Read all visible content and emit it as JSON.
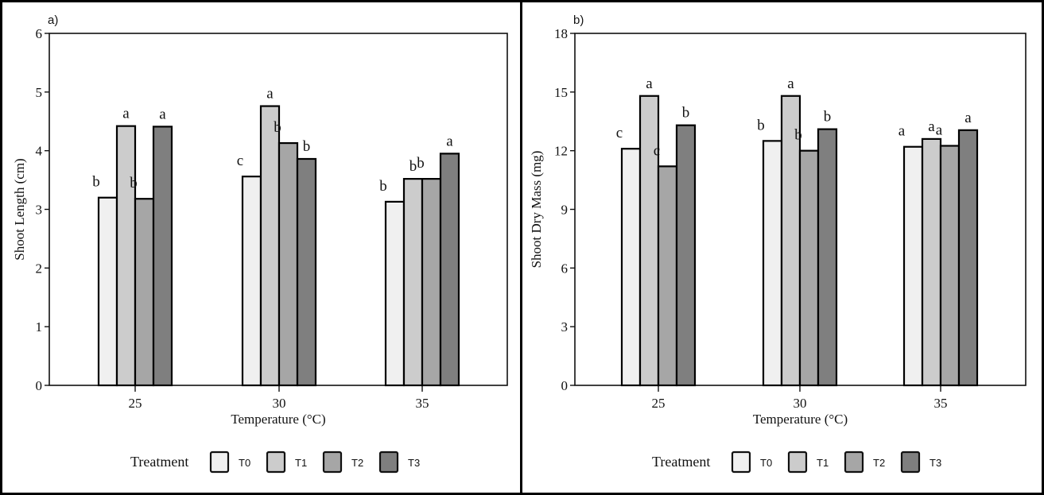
{
  "chart_data": [
    {
      "type": "bar",
      "panel_label": "a)",
      "title": "",
      "xlabel": "Temperature (°C)",
      "ylabel": "Shoot Length (cm)",
      "ylim": [
        0,
        6
      ],
      "yticks": [
        0,
        1,
        2,
        3,
        4,
        5,
        6
      ],
      "categories": [
        "25",
        "30",
        "35"
      ],
      "grid": false,
      "legend_position": "bottom",
      "legend_title": "Treatment",
      "series": [
        {
          "name": "T0",
          "color": "#f0f0f0",
          "values": [
            3.2,
            3.56,
            3.13
          ],
          "labels": [
            "b",
            "c",
            "b"
          ]
        },
        {
          "name": "T1",
          "color": "#cccccc",
          "values": [
            4.42,
            4.76,
            3.52
          ],
          "labels": [
            "a",
            "a",
            "b"
          ]
        },
        {
          "name": "T2",
          "color": "#a6a6a6",
          "values": [
            3.18,
            4.13,
            3.52
          ],
          "labels": [
            "b",
            "b",
            "b"
          ]
        },
        {
          "name": "T3",
          "color": "#7f7f7f",
          "values": [
            4.41,
            3.86,
            3.95
          ],
          "labels": [
            "a",
            "b",
            "a"
          ]
        }
      ]
    },
    {
      "type": "bar",
      "panel_label": "b)",
      "title": "",
      "xlabel": "Temperature (°C)",
      "ylabel": "Shoot Dry Mass (mg)",
      "ylim": [
        0,
        18
      ],
      "yticks": [
        0,
        3,
        6,
        9,
        12,
        15,
        18
      ],
      "categories": [
        "25",
        "30",
        "35"
      ],
      "grid": false,
      "legend_position": "bottom",
      "legend_title": "Treatment",
      "series": [
        {
          "name": "T0",
          "color": "#f0f0f0",
          "values": [
            12.1,
            12.5,
            12.2
          ],
          "labels": [
            "c",
            "b",
            "a"
          ]
        },
        {
          "name": "T1",
          "color": "#cccccc",
          "values": [
            14.8,
            14.8,
            12.6
          ],
          "labels": [
            "a",
            "a",
            "a"
          ]
        },
        {
          "name": "T2",
          "color": "#a6a6a6",
          "values": [
            11.2,
            12.0,
            12.25
          ],
          "labels": [
            "c",
            "b",
            "a"
          ]
        },
        {
          "name": "T3",
          "color": "#7f7f7f",
          "values": [
            13.3,
            13.1,
            13.05
          ],
          "labels": [
            "b",
            "b",
            "a"
          ]
        }
      ]
    }
  ]
}
